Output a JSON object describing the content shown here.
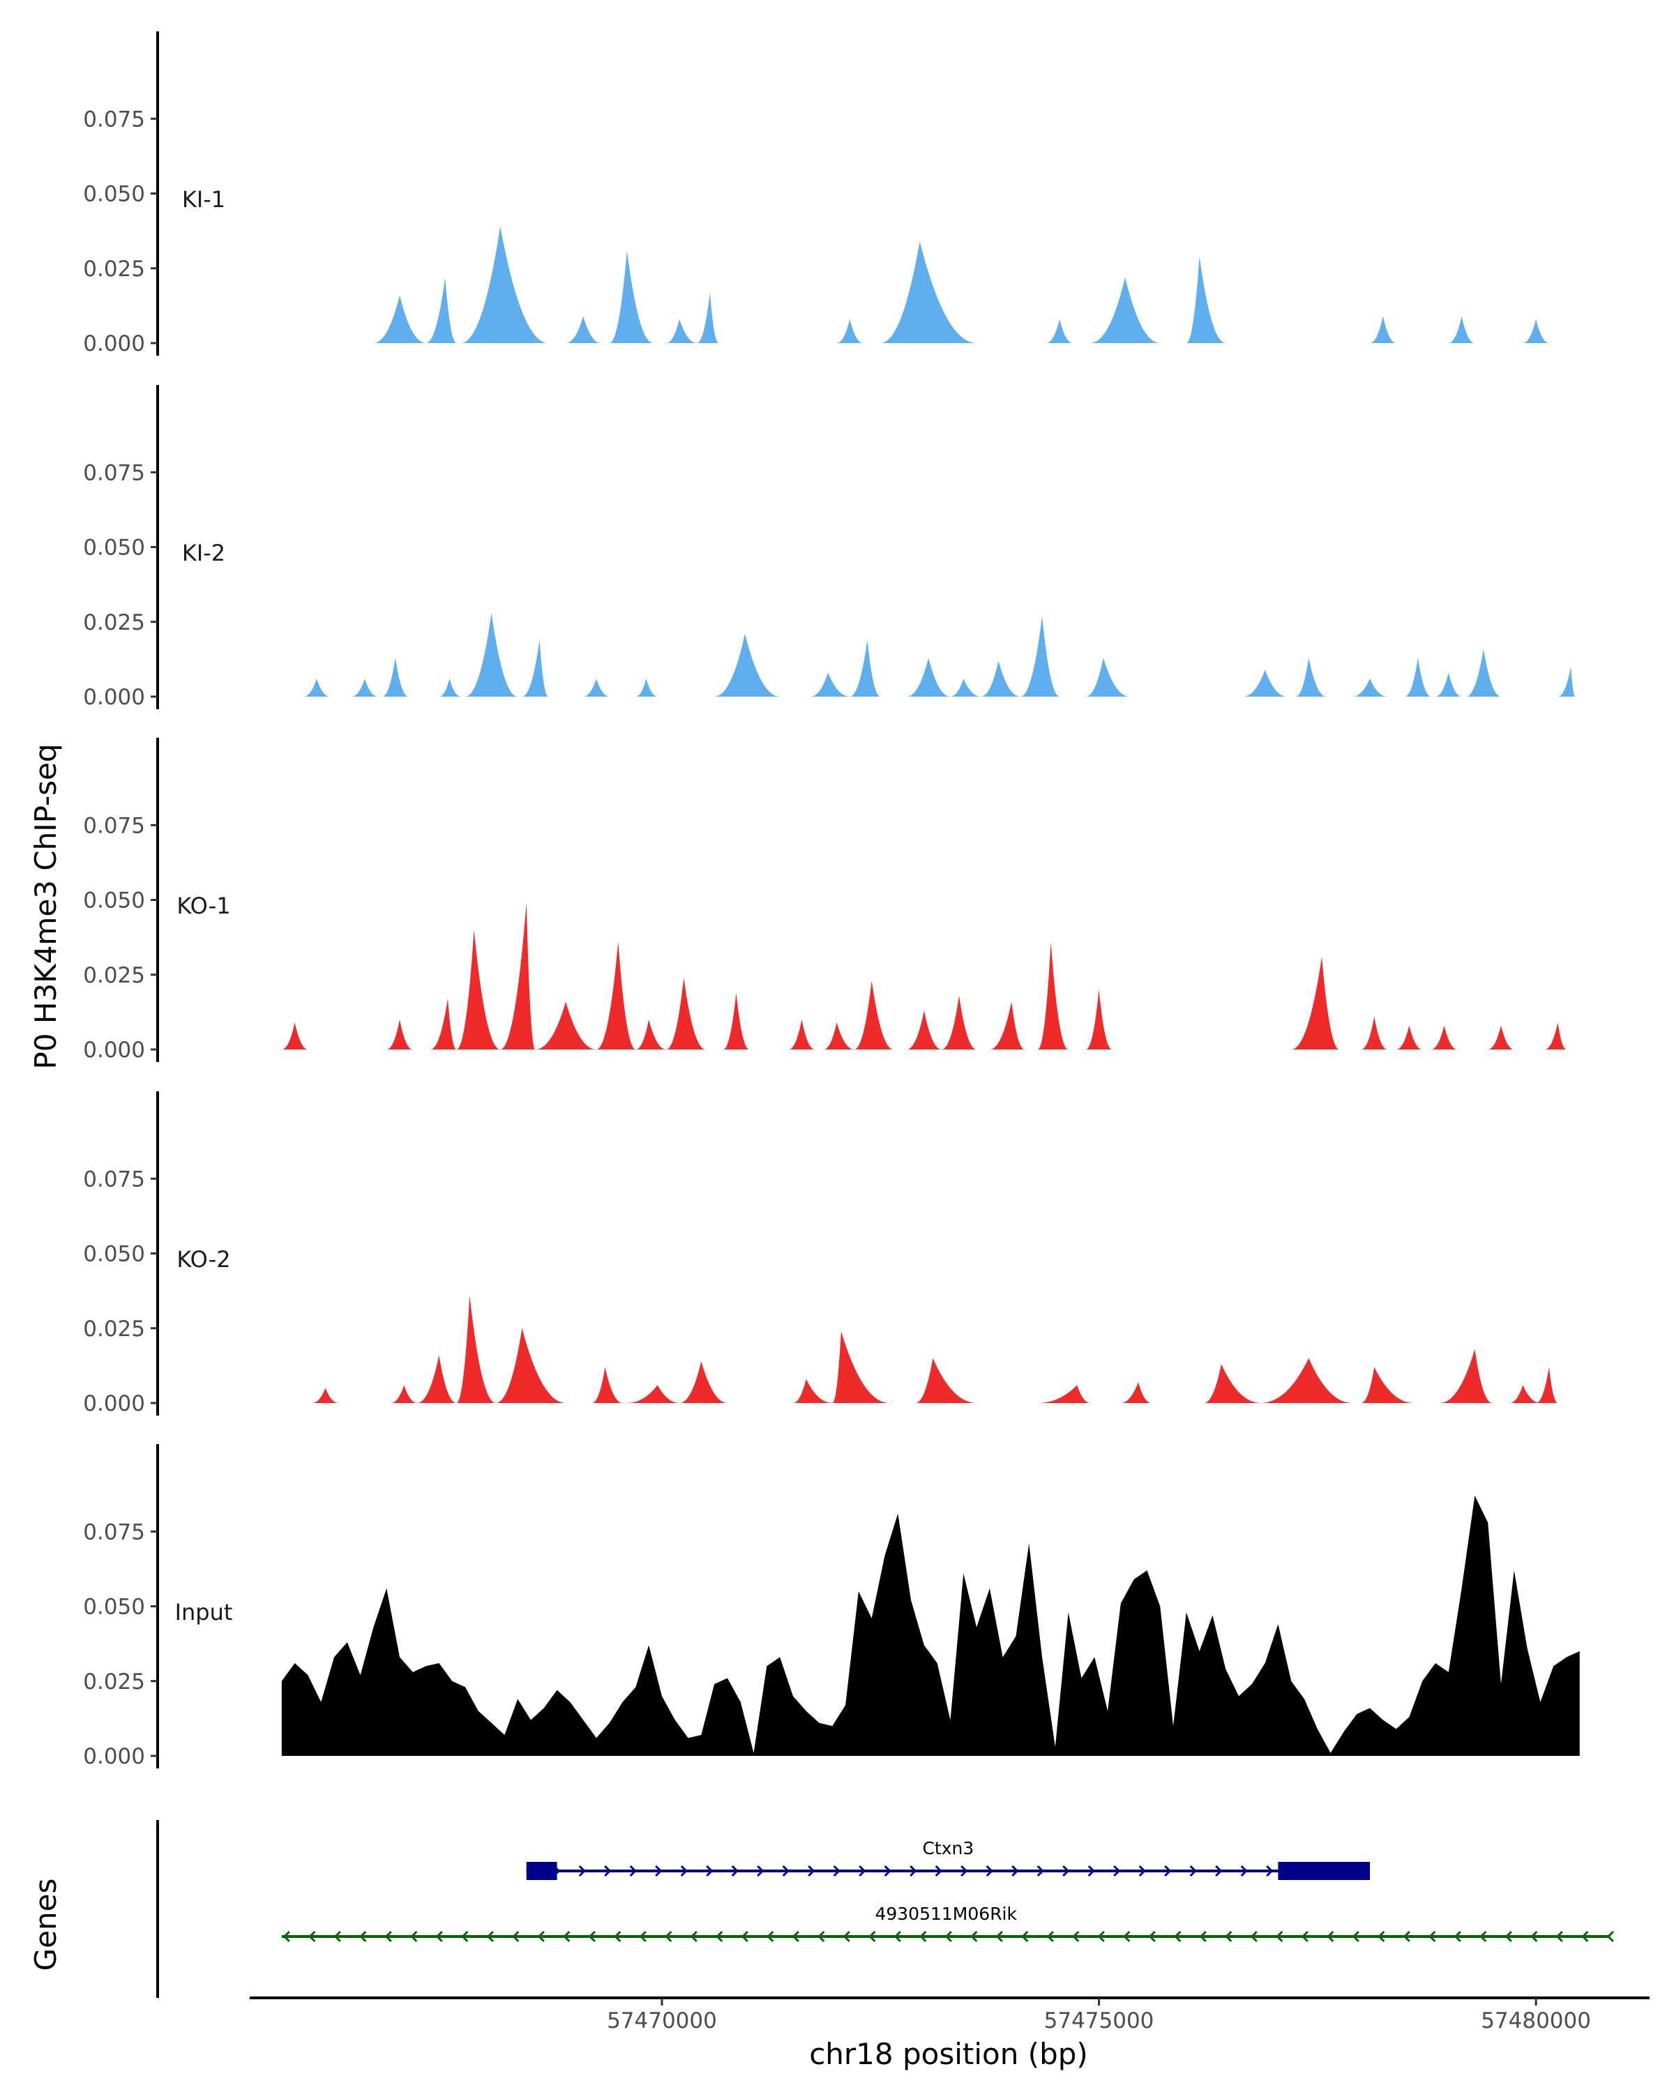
{
  "chart_data": {
    "type": "area",
    "ylabel": "P0 H3K4me3 ChIP-seq",
    "xlabel": "chr18 position (bp)",
    "genes_label": "Genes",
    "xlim": [
      57465300,
      57481300
    ],
    "xticks": [
      57470000,
      57475000,
      57480000
    ],
    "xtick_labels": [
      "57470000",
      "57475000",
      "57480000"
    ],
    "ylim": [
      0,
      0.1
    ],
    "yticks": [
      0,
      0.025,
      0.05,
      0.075
    ],
    "ytick_labels": [
      "0.000",
      "0.025",
      "0.050",
      "0.075"
    ],
    "colors": {
      "KI": "#5FAEEE",
      "KO": "#EE2A2A",
      "Input": "#000000",
      "gene1": "#00008B",
      "gene2": "#006400"
    },
    "tracks": [
      {
        "name": "KI-1",
        "color": "#5FAEEE",
        "peaks": [
          {
            "start": 57466700,
            "end": 57467300,
            "apex": 57467000,
            "height": 0.016
          },
          {
            "start": 57467300,
            "end": 57467650,
            "apex": 57467520,
            "height": 0.022
          },
          {
            "start": 57467700,
            "end": 57468700,
            "apex": 57468150,
            "height": 0.039
          },
          {
            "start": 57468900,
            "end": 57469300,
            "apex": 57469100,
            "height": 0.009
          },
          {
            "start": 57469400,
            "end": 57469900,
            "apex": 57469600,
            "height": 0.031
          },
          {
            "start": 57470050,
            "end": 57470400,
            "apex": 57470200,
            "height": 0.008
          },
          {
            "start": 57470400,
            "end": 57470650,
            "apex": 57470550,
            "height": 0.017
          },
          {
            "start": 57472000,
            "end": 57472300,
            "apex": 57472150,
            "height": 0.008
          },
          {
            "start": 57472500,
            "end": 57473600,
            "apex": 57472950,
            "height": 0.034
          },
          {
            "start": 57474400,
            "end": 57474700,
            "apex": 57474550,
            "height": 0.008
          },
          {
            "start": 57474900,
            "end": 57475700,
            "apex": 57475300,
            "height": 0.022
          },
          {
            "start": 57476000,
            "end": 57476450,
            "apex": 57476150,
            "height": 0.029
          },
          {
            "start": 57478100,
            "end": 57478400,
            "apex": 57478250,
            "height": 0.009
          },
          {
            "start": 57479000,
            "end": 57479300,
            "apex": 57479150,
            "height": 0.009
          },
          {
            "start": 57479850,
            "end": 57480150,
            "apex": 57480000,
            "height": 0.008
          }
        ]
      },
      {
        "name": "KI-2",
        "color": "#5FAEEE",
        "peaks": [
          {
            "start": 57465900,
            "end": 57466200,
            "apex": 57466050,
            "height": 0.006
          },
          {
            "start": 57466450,
            "end": 57466750,
            "apex": 57466600,
            "height": 0.006
          },
          {
            "start": 57466800,
            "end": 57467100,
            "apex": 57466950,
            "height": 0.013
          },
          {
            "start": 57467450,
            "end": 57467700,
            "apex": 57467570,
            "height": 0.006
          },
          {
            "start": 57467750,
            "end": 57468350,
            "apex": 57468050,
            "height": 0.028
          },
          {
            "start": 57468400,
            "end": 57468700,
            "apex": 57468600,
            "height": 0.019
          },
          {
            "start": 57469100,
            "end": 57469400,
            "apex": 57469250,
            "height": 0.006
          },
          {
            "start": 57469700,
            "end": 57469950,
            "apex": 57469820,
            "height": 0.006
          },
          {
            "start": 57470600,
            "end": 57471350,
            "apex": 57470950,
            "height": 0.021
          },
          {
            "start": 57471700,
            "end": 57472150,
            "apex": 57471900,
            "height": 0.008
          },
          {
            "start": 57472150,
            "end": 57472500,
            "apex": 57472350,
            "height": 0.019
          },
          {
            "start": 57472800,
            "end": 57473300,
            "apex": 57473050,
            "height": 0.013
          },
          {
            "start": 57473300,
            "end": 57473650,
            "apex": 57473450,
            "height": 0.006
          },
          {
            "start": 57473650,
            "end": 57474100,
            "apex": 57473850,
            "height": 0.012
          },
          {
            "start": 57474100,
            "end": 57474550,
            "apex": 57474350,
            "height": 0.027
          },
          {
            "start": 57474850,
            "end": 57475350,
            "apex": 57475050,
            "height": 0.013
          },
          {
            "start": 57476650,
            "end": 57477150,
            "apex": 57476900,
            "height": 0.009
          },
          {
            "start": 57477250,
            "end": 57477600,
            "apex": 57477400,
            "height": 0.013
          },
          {
            "start": 57477900,
            "end": 57478300,
            "apex": 57478100,
            "height": 0.006
          },
          {
            "start": 57478500,
            "end": 57478800,
            "apex": 57478650,
            "height": 0.013
          },
          {
            "start": 57478850,
            "end": 57479150,
            "apex": 57479000,
            "height": 0.008
          },
          {
            "start": 57479200,
            "end": 57479600,
            "apex": 57479400,
            "height": 0.016
          },
          {
            "start": 57480250,
            "end": 57480450,
            "apex": 57480400,
            "height": 0.01
          }
        ]
      },
      {
        "name": "KO-1",
        "color": "#EE2A2A",
        "peaks": [
          {
            "start": 57465650,
            "end": 57465950,
            "apex": 57465800,
            "height": 0.009
          },
          {
            "start": 57466850,
            "end": 57467150,
            "apex": 57467000,
            "height": 0.01
          },
          {
            "start": 57467350,
            "end": 57467650,
            "apex": 57467550,
            "height": 0.017
          },
          {
            "start": 57467650,
            "end": 57468150,
            "apex": 57467850,
            "height": 0.04
          },
          {
            "start": 57468150,
            "end": 57468550,
            "apex": 57468450,
            "height": 0.049
          },
          {
            "start": 57468550,
            "end": 57469250,
            "apex": 57468900,
            "height": 0.016
          },
          {
            "start": 57469250,
            "end": 57469700,
            "apex": 57469500,
            "height": 0.036
          },
          {
            "start": 57469700,
            "end": 57470050,
            "apex": 57469850,
            "height": 0.01
          },
          {
            "start": 57470050,
            "end": 57470500,
            "apex": 57470250,
            "height": 0.024
          },
          {
            "start": 57470700,
            "end": 57471000,
            "apex": 57470850,
            "height": 0.019
          },
          {
            "start": 57471450,
            "end": 57471750,
            "apex": 57471600,
            "height": 0.01
          },
          {
            "start": 57471850,
            "end": 57472200,
            "apex": 57472000,
            "height": 0.009
          },
          {
            "start": 57472200,
            "end": 57472650,
            "apex": 57472400,
            "height": 0.023
          },
          {
            "start": 57472800,
            "end": 57473200,
            "apex": 57473000,
            "height": 0.013
          },
          {
            "start": 57473200,
            "end": 57473600,
            "apex": 57473400,
            "height": 0.018
          },
          {
            "start": 57473750,
            "end": 57474150,
            "apex": 57474000,
            "height": 0.016
          },
          {
            "start": 57474300,
            "end": 57474650,
            "apex": 57474450,
            "height": 0.036
          },
          {
            "start": 57474850,
            "end": 57475150,
            "apex": 57475000,
            "height": 0.02
          },
          {
            "start": 57477200,
            "end": 57477750,
            "apex": 57477550,
            "height": 0.031
          },
          {
            "start": 57478000,
            "end": 57478300,
            "apex": 57478150,
            "height": 0.011
          },
          {
            "start": 57478400,
            "end": 57478700,
            "apex": 57478550,
            "height": 0.008
          },
          {
            "start": 57478800,
            "end": 57479100,
            "apex": 57478950,
            "height": 0.008
          },
          {
            "start": 57479450,
            "end": 57479750,
            "apex": 57479600,
            "height": 0.008
          },
          {
            "start": 57480100,
            "end": 57480350,
            "apex": 57480250,
            "height": 0.009
          }
        ]
      },
      {
        "name": "KO-2",
        "color": "#EE2A2A",
        "peaks": [
          {
            "start": 57466000,
            "end": 57466300,
            "apex": 57466150,
            "height": 0.005
          },
          {
            "start": 57466900,
            "end": 57467200,
            "apex": 57467050,
            "height": 0.006
          },
          {
            "start": 57467200,
            "end": 57467650,
            "apex": 57467450,
            "height": 0.016
          },
          {
            "start": 57467650,
            "end": 57468100,
            "apex": 57467800,
            "height": 0.036
          },
          {
            "start": 57468100,
            "end": 57468900,
            "apex": 57468400,
            "height": 0.025
          },
          {
            "start": 57469200,
            "end": 57469550,
            "apex": 57469350,
            "height": 0.012
          },
          {
            "start": 57469600,
            "end": 57470200,
            "apex": 57469950,
            "height": 0.006
          },
          {
            "start": 57470200,
            "end": 57470750,
            "apex": 57470450,
            "height": 0.014
          },
          {
            "start": 57471500,
            "end": 57471950,
            "apex": 57471650,
            "height": 0.008
          },
          {
            "start": 57471950,
            "end": 57472600,
            "apex": 57472050,
            "height": 0.024
          },
          {
            "start": 57472900,
            "end": 57473600,
            "apex": 57473100,
            "height": 0.015
          },
          {
            "start": 57474300,
            "end": 57474900,
            "apex": 57474750,
            "height": 0.006
          },
          {
            "start": 57475250,
            "end": 57475600,
            "apex": 57475450,
            "height": 0.007
          },
          {
            "start": 57476200,
            "end": 57476850,
            "apex": 57476400,
            "height": 0.013
          },
          {
            "start": 57476850,
            "end": 57477900,
            "apex": 57477400,
            "height": 0.015
          },
          {
            "start": 57478000,
            "end": 57478600,
            "apex": 57478150,
            "height": 0.012
          },
          {
            "start": 57478900,
            "end": 57479500,
            "apex": 57479300,
            "height": 0.018
          },
          {
            "start": 57479700,
            "end": 57480050,
            "apex": 57479850,
            "height": 0.006
          },
          {
            "start": 57480000,
            "end": 57480250,
            "apex": 57480150,
            "height": 0.012
          }
        ]
      },
      {
        "name": "Input",
        "color": "#000000",
        "x": [
          57465650,
          57465800,
          57465950,
          57466100,
          57466250,
          57466400,
          57466550,
          57466700,
          57466850,
          57467000,
          57467150,
          57467300,
          57467450,
          57467600,
          57467750,
          57467900,
          57468050,
          57468200,
          57468350,
          57468500,
          57468650,
          57468800,
          57468950,
          57469100,
          57469250,
          57469400,
          57469550,
          57469700,
          57469850,
          57470000,
          57470150,
          57470300,
          57470450,
          57470600,
          57470750,
          57470900,
          57471050,
          57471200,
          57471350,
          57471500,
          57471650,
          57471800,
          57471950,
          57472100,
          57472250,
          57472400,
          57472550,
          57472700,
          57472850,
          57473000,
          57473150,
          57473300,
          57473450,
          57473600,
          57473750,
          57473900,
          57474050,
          57474200,
          57474350,
          57474500,
          57474650,
          57474800,
          57474950,
          57475100,
          57475250,
          57475400,
          57475550,
          57475700,
          57475850,
          57476000,
          57476150,
          57476300,
          57476450,
          57476600,
          57476750,
          57476900,
          57477050,
          57477200,
          57477350,
          57477500,
          57477650,
          57477800,
          57477950,
          57478100,
          57478250,
          57478400,
          57478550,
          57478700,
          57478850,
          57479000,
          57479150,
          57479300,
          57479450,
          57479600,
          57479750,
          57479900,
          57480050,
          57480200,
          57480350,
          57480500
        ],
        "y": [
          0.025,
          0.031,
          0.027,
          0.018,
          0.033,
          0.038,
          0.027,
          0.043,
          0.056,
          0.033,
          0.028,
          0.03,
          0.031,
          0.025,
          0.023,
          0.015,
          0.011,
          0.007,
          0.019,
          0.012,
          0.016,
          0.022,
          0.018,
          0.012,
          0.006,
          0.011,
          0.018,
          0.023,
          0.037,
          0.02,
          0.012,
          0.006,
          0.007,
          0.024,
          0.026,
          0.018,
          0.001,
          0.03,
          0.033,
          0.02,
          0.015,
          0.011,
          0.01,
          0.017,
          0.055,
          0.046,
          0.067,
          0.081,
          0.052,
          0.037,
          0.031,
          0.012,
          0.061,
          0.043,
          0.056,
          0.033,
          0.04,
          0.071,
          0.033,
          0.003,
          0.048,
          0.026,
          0.033,
          0.015,
          0.051,
          0.059,
          0.062,
          0.05,
          0.01,
          0.048,
          0.035,
          0.047,
          0.029,
          0.02,
          0.024,
          0.031,
          0.044,
          0.025,
          0.019,
          0.009,
          0.001,
          0.008,
          0.014,
          0.016,
          0.012,
          0.009,
          0.013,
          0.025,
          0.031,
          0.028,
          0.056,
          0.087,
          0.078,
          0.024,
          0.062,
          0.036,
          0.018,
          0.03,
          0.033,
          0.035
        ]
      }
    ],
    "genes": [
      {
        "name": "Ctxn3",
        "strand": "+",
        "color": "#00008B",
        "start": 57468450,
        "end": 57478100,
        "exons": [
          [
            57468450,
            57468800
          ],
          [
            57477050,
            57478100
          ]
        ]
      },
      {
        "name": "4930511M06Rik",
        "strand": "-",
        "color": "#006400",
        "start": 57465650,
        "end": 57480850,
        "exons": []
      }
    ]
  }
}
